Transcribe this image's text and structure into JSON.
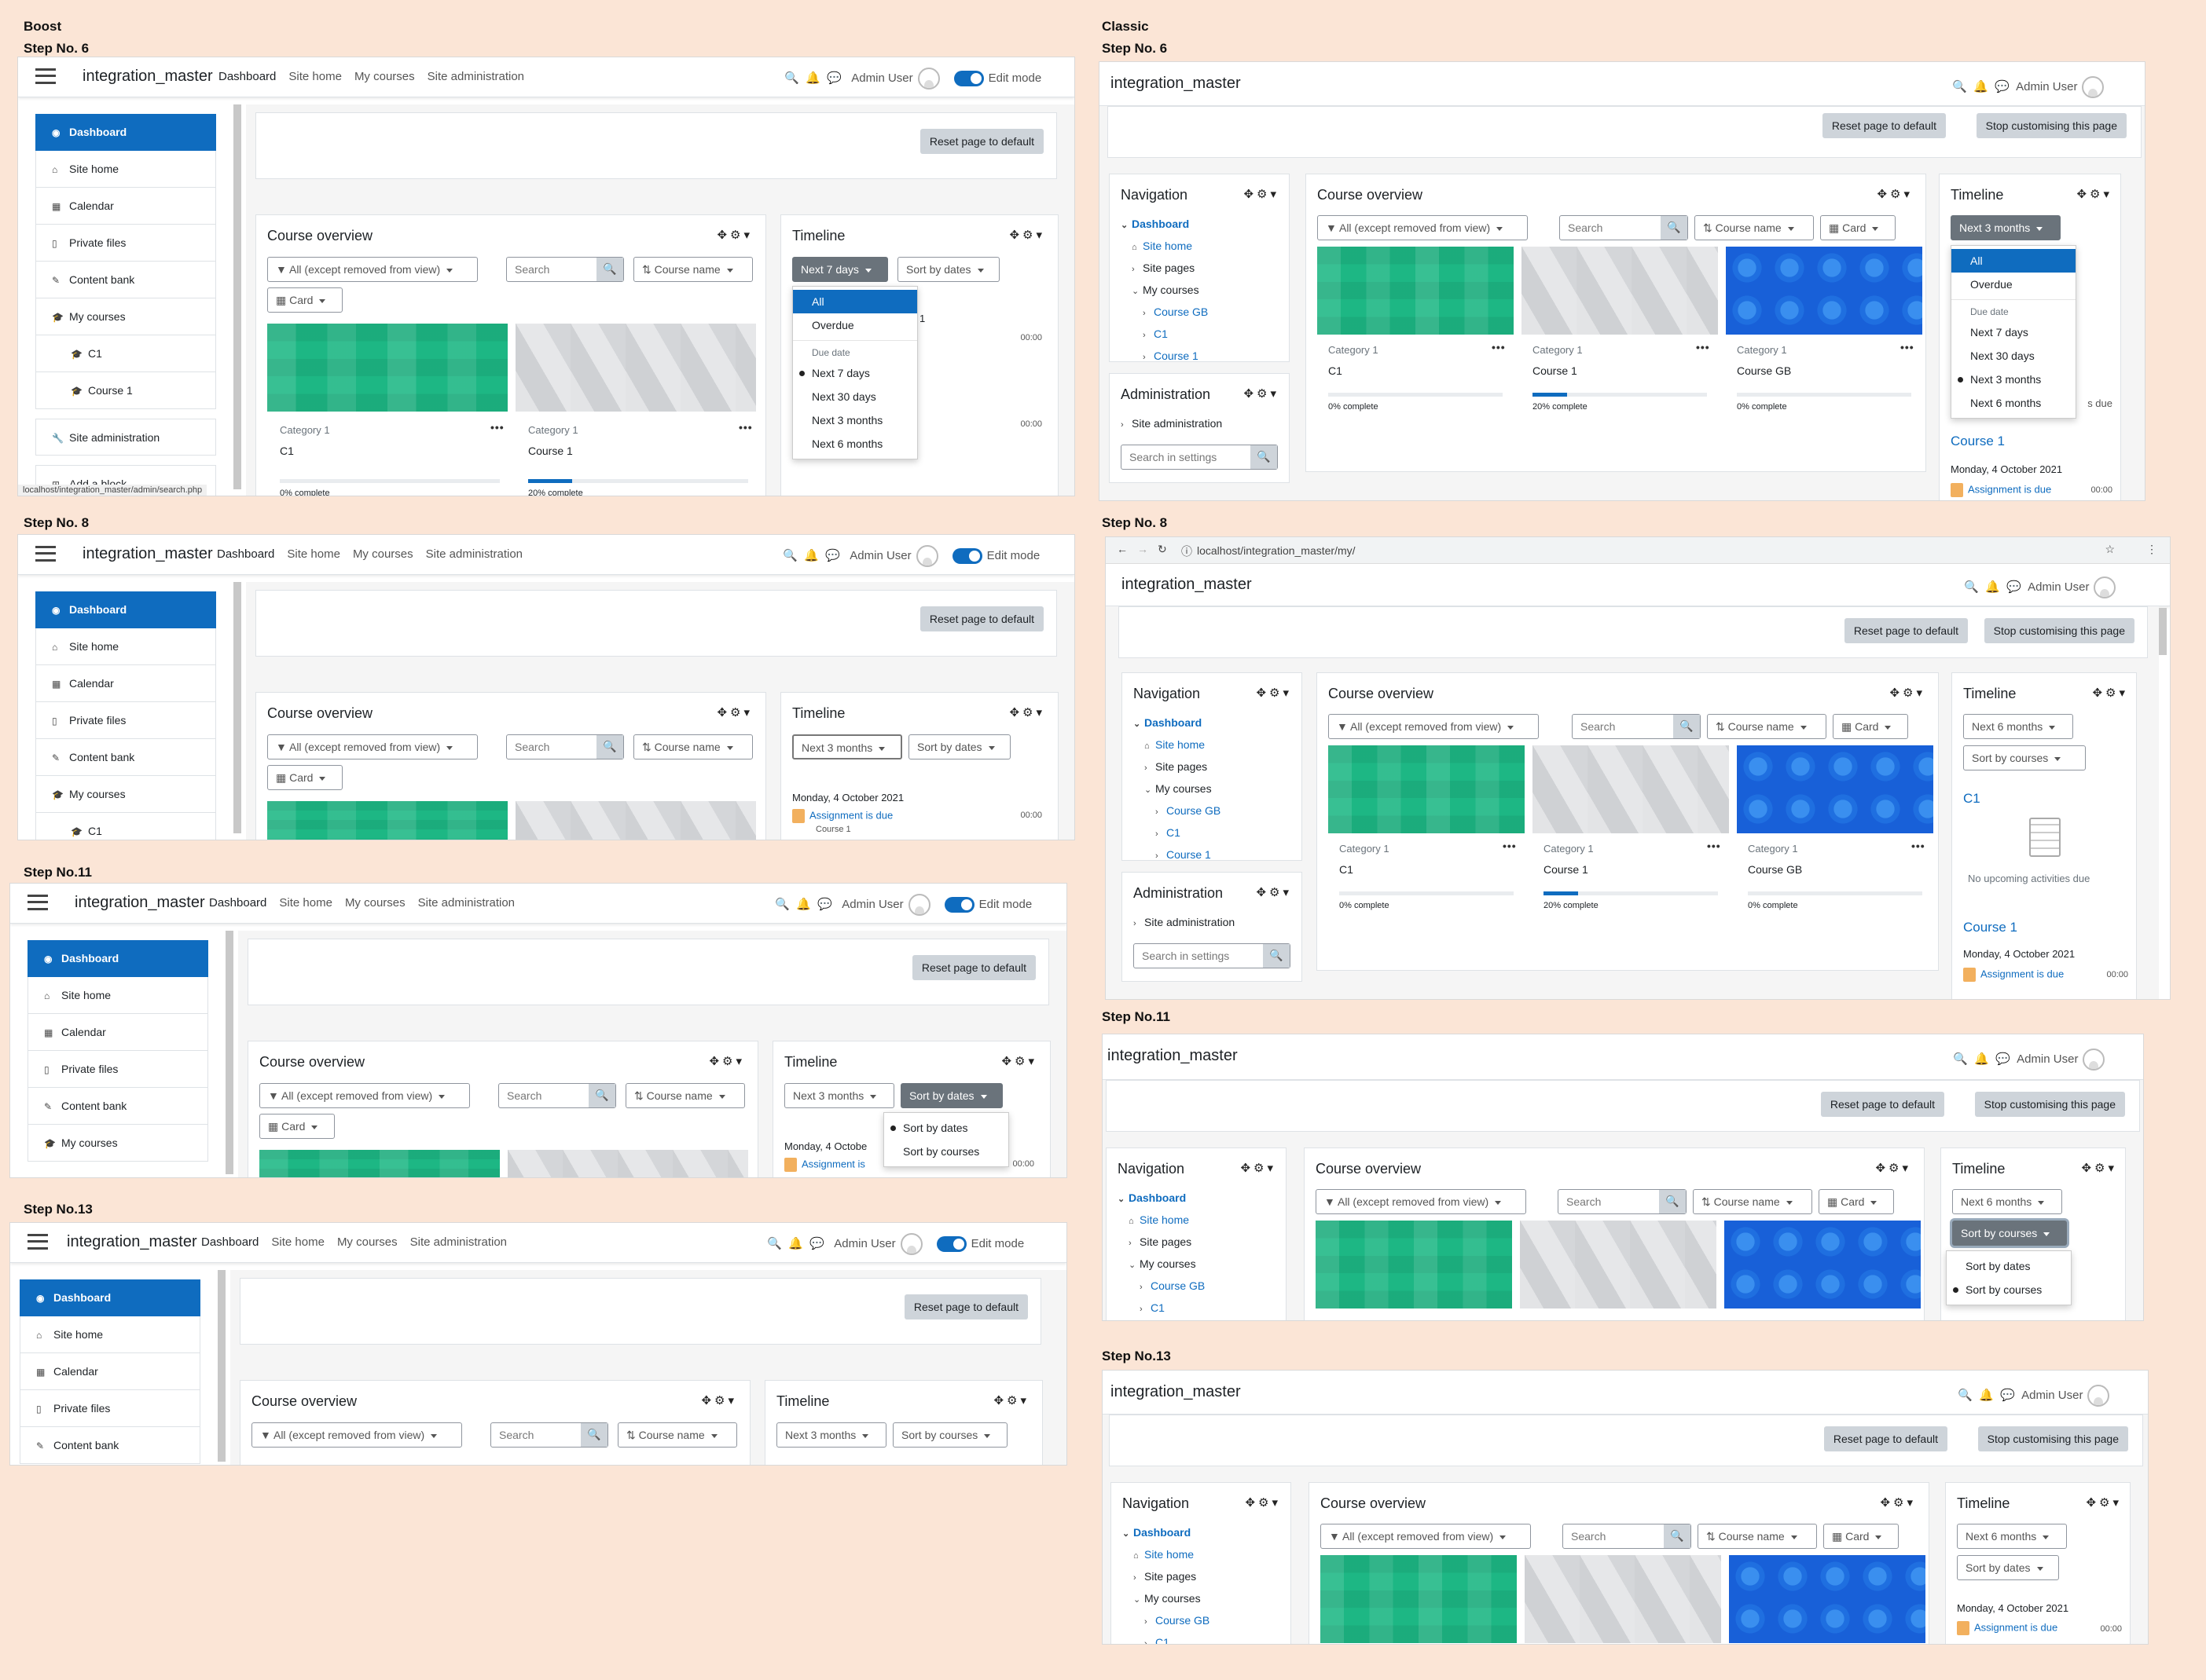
{
  "labels": {
    "boost": "Boost",
    "classic": "Classic",
    "step6": "Step No. 6",
    "step8": "Step No. 8",
    "step11": "Step No.11",
    "step13": "Step No.13"
  },
  "site": {
    "name": "integration_master",
    "user": "Admin User",
    "edit_mode": "Edit mode",
    "url": "localhost/integration_master/my/",
    "status_url": "localhost/integration_master/admin/search.php"
  },
  "nav": {
    "dashboard": "Dashboard",
    "site_home": "Site home",
    "my_courses": "My courses",
    "site_admin": "Site administration"
  },
  "icons": {
    "search": "🔍",
    "bell": "🔔",
    "chat": "💬",
    "move": "✥",
    "gear": "⚙",
    "caret": "▾",
    "back": "←",
    "forward": "→",
    "reload": "↻",
    "info": "ⓘ",
    "star": "☆",
    "kebab": "⋮"
  },
  "drawer": {
    "dashboard": "Dashboard",
    "site_home": "Site home",
    "calendar": "Calendar",
    "private_files": "Private files",
    "content_bank": "Content bank",
    "my_courses": "My courses",
    "c1": "C1",
    "course1": "Course 1",
    "site_admin": "Site administration",
    "add_block": "Add a block"
  },
  "buttons": {
    "reset": "Reset page to default",
    "stop": "Stop customising this page"
  },
  "blocks": {
    "course_overview": "Course overview",
    "timeline": "Timeline",
    "navigation": "Navigation",
    "administration": "Administration"
  },
  "filters": {
    "all": "All (except removed from view)",
    "search": "Search",
    "course_name": "Course name",
    "card": "Card"
  },
  "timeline": {
    "next7": "Next 7 days",
    "next3": "Next 3 months",
    "next6": "Next 6 months",
    "sort_dates": "Sort by dates",
    "sort_courses": "Sort by courses"
  },
  "menu": {
    "all": "All",
    "overdue": "Overdue",
    "due_date": "Due date",
    "next7": "Next 7 days",
    "next30": "Next 30 days",
    "next3": "Next 3 months",
    "next6": "Next 6 months",
    "sort_dates": "Sort by dates",
    "sort_courses": "Sort by courses"
  },
  "courses": {
    "category": "Category 1",
    "c1": "C1",
    "course1": "Course 1",
    "coursegb": "Course GB",
    "p0": "0% complete",
    "p20": "20% complete",
    "p20_value": 20,
    "p0_value": 0
  },
  "events": {
    "date": "Monday, 4 October 2021",
    "assignment": "Assignment is due",
    "assignment_short": "Assignment is",
    "time": "00:00",
    "course1": "Course 1",
    "due_partial": "s due",
    "no_upcoming": "No upcoming activities due",
    "frag_1": "1",
    "frag_21": "21",
    "frag_date": "Monday, 4 Octobe"
  },
  "navtree": {
    "dashboard": "Dashboard",
    "site_home": "Site home",
    "site_pages": "Site pages",
    "my_courses": "My courses",
    "coursegb": "Course GB",
    "c1": "C1",
    "course1": "Course 1",
    "site_admin": "Site administration",
    "search_settings": "Search in settings"
  },
  "colors": {
    "background": "#fbe5d6",
    "primary": "#0f6cbf",
    "button": "#ced4da",
    "green": "#1db784",
    "blue": "#1860d8"
  }
}
